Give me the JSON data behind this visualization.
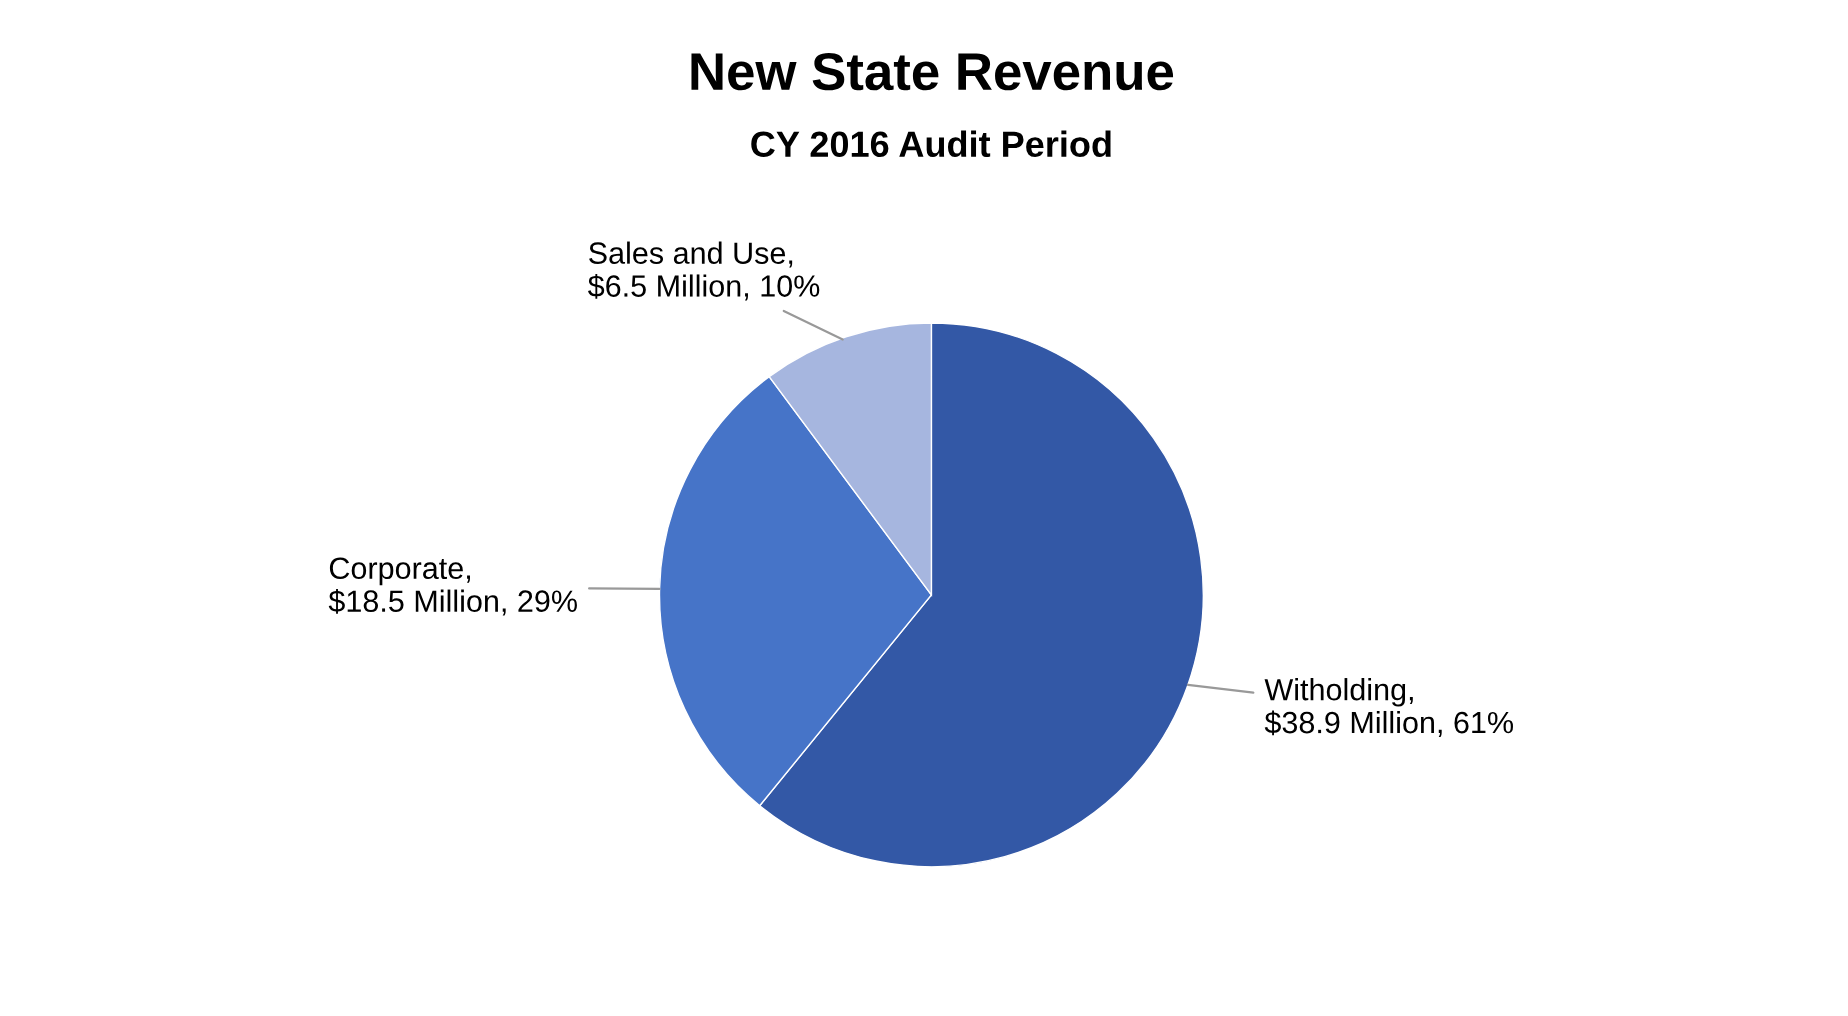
{
  "chart_data": {
    "type": "pie",
    "title": "New State Revenue",
    "subtitle": "CY 2016 Audit Period",
    "categories": [
      "Witholding",
      "Corporate",
      "Sales and Use"
    ],
    "values": [
      38.9,
      18.5,
      6.5
    ],
    "value_labels": [
      ",\n$38.9 Million, 61%",
      ",\n$18.5 Million, 29%",
      ",\n$6.5 Million, 10%"
    ],
    "colors": [
      "#3358a6",
      "#4674c8",
      "#a6b6df"
    ],
    "legend": false
  }
}
